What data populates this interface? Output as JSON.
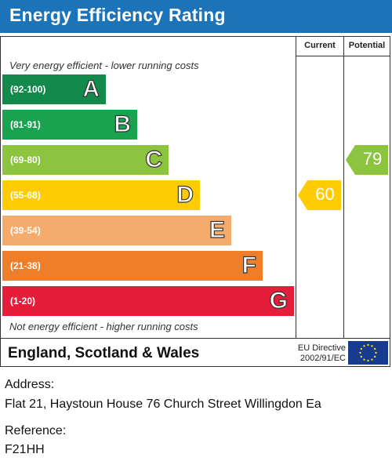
{
  "header": {
    "title": "Energy Efficiency Rating"
  },
  "columns": {
    "current": "Current",
    "potential": "Potential"
  },
  "captions": {
    "top": "Very energy efficient - lower running costs",
    "bottom": "Not energy efficient - higher running costs"
  },
  "bands": [
    {
      "range": "(92-100)",
      "letter": "A",
      "color": "#138a4c"
    },
    {
      "range": "(81-91)",
      "letter": "B",
      "color": "#19a24f"
    },
    {
      "range": "(69-80)",
      "letter": "C",
      "color": "#8cc43f"
    },
    {
      "range": "(55-68)",
      "letter": "D",
      "color": "#ffcc04"
    },
    {
      "range": "(39-54)",
      "letter": "E",
      "color": "#f5ab6b"
    },
    {
      "range": "(21-38)",
      "letter": "F",
      "color": "#ef7e2a"
    },
    {
      "range": "(1-20)",
      "letter": "G",
      "color": "#e31d3a"
    }
  ],
  "ratings": {
    "current": {
      "value": "60",
      "band": "D",
      "color": "#ffcc04"
    },
    "potential": {
      "value": "79",
      "band": "C",
      "color": "#8cc43f"
    }
  },
  "footer": {
    "region": "England, Scotland & Wales",
    "eu_line1": "EU Directive",
    "eu_line2": "2002/91/EC",
    "eu_flag_color": "#173b8e",
    "eu_star_color": "#ffdd00"
  },
  "property": {
    "address_label": "Address:",
    "address": "Flat 21, Haystoun House 76 Church Street Willingdon Ea",
    "reference_label": "Reference:",
    "reference": "F21HH"
  }
}
